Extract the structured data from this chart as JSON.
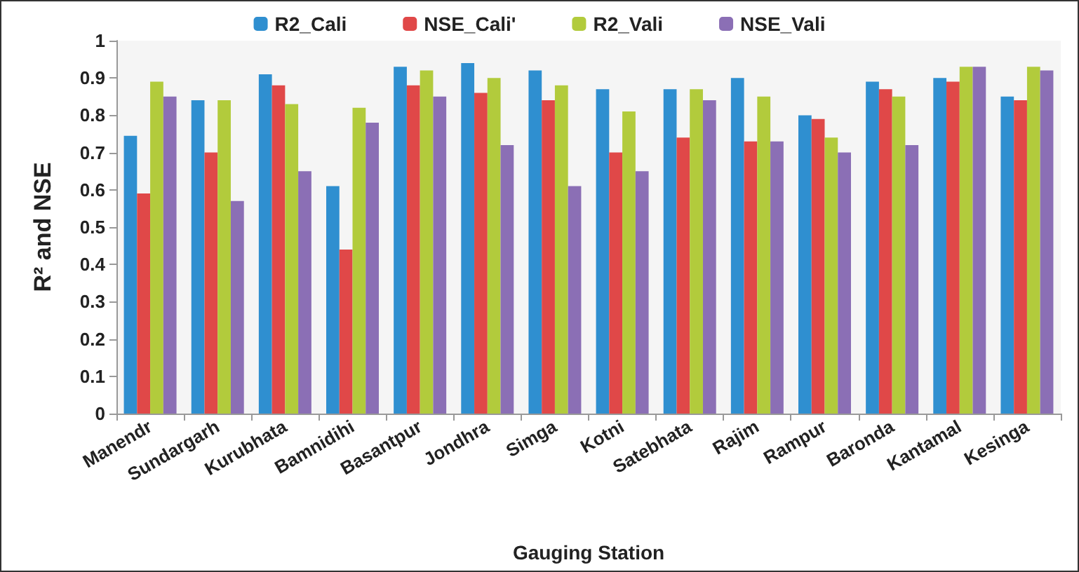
{
  "chart_data": {
    "type": "bar",
    "xlabel": "Gauging Station",
    "ylabel": "R² and NSE",
    "categories": [
      "Manendr",
      "Sundargarh",
      "Kurubhata",
      "Bamnidihi",
      "Basantpur",
      "Jondhra",
      "Simga",
      "Kotni",
      "Satebhata",
      "Rajim",
      "Rampur",
      "Baronda",
      "Kantamal",
      "Kesinga"
    ],
    "series": [
      {
        "name": "R2_Cali",
        "color": "#2f8fd0",
        "values": [
          0.745,
          0.84,
          0.91,
          0.61,
          0.93,
          0.94,
          0.92,
          0.87,
          0.87,
          0.9,
          0.8,
          0.89,
          0.9,
          0.85
        ]
      },
      {
        "name": "NSE_Cali'",
        "color": "#e04848",
        "values": [
          0.59,
          0.7,
          0.88,
          0.44,
          0.88,
          0.86,
          0.84,
          0.7,
          0.74,
          0.73,
          0.79,
          0.87,
          0.89,
          0.84
        ]
      },
      {
        "name": "R2_Vali",
        "color": "#b2cb3c",
        "values": [
          0.89,
          0.84,
          0.83,
          0.82,
          0.92,
          0.9,
          0.88,
          0.81,
          0.87,
          0.85,
          0.74,
          0.85,
          0.93,
          0.93
        ]
      },
      {
        "name": "NSE_Vali",
        "color": "#8b6fb5",
        "values": [
          0.85,
          0.57,
          0.65,
          0.78,
          0.85,
          0.72,
          0.61,
          0.65,
          0.84,
          0.73,
          0.7,
          0.72,
          0.93,
          0.92
        ]
      }
    ],
    "ylim": [
      0,
      1
    ],
    "yticks": [
      0,
      0.1,
      0.2,
      0.3,
      0.4,
      0.5,
      0.6,
      0.7,
      0.8,
      0.9,
      1
    ],
    "grid": false,
    "legend": "top"
  }
}
